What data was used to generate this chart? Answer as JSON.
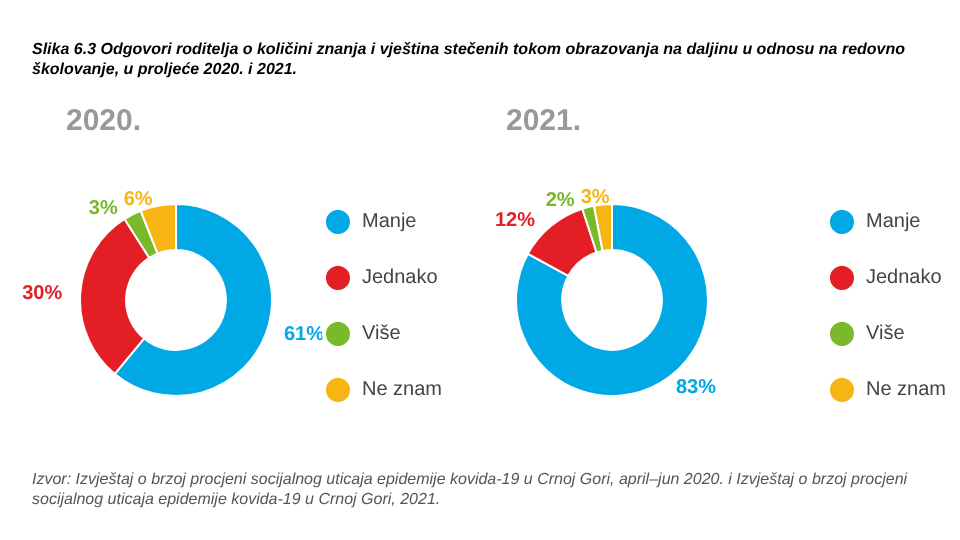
{
  "chart_data": [
    {
      "type": "donut",
      "title": "2020.",
      "annotations": [
        "Slika 6.3 Odgovori roditelja o količini znanja i vještina stečenih tokom obrazovanja na daljinu u odnosu na redovno školovanje, u proljeće 2020. i 2021."
      ],
      "categories": [
        "Manje",
        "Jednako",
        "Više",
        "Ne znam"
      ],
      "values": [
        61,
        30,
        3,
        6
      ],
      "value_labels": [
        "61%",
        "30%",
        "3%",
        "6%"
      ],
      "colors": [
        "#00a9e6",
        "#e31e24",
        "#7ab929",
        "#f7b514"
      ],
      "legend": "right"
    },
    {
      "type": "donut",
      "title": "2021.",
      "annotations": [
        "Izvor: Izvještaj o brzoj procjeni socijalnog uticaja epidemije kovida-19 u Crnoj Gori, april–jun 2020. i Izvještaj o brzoj procjeni socijalnog uticaja epidemije kovida-19 u Crnoj Gori, 2021."
      ],
      "categories": [
        "Manje",
        "Jednako",
        "Više",
        "Ne znam"
      ],
      "values": [
        83,
        12,
        2,
        3
      ],
      "value_labels": [
        "83%",
        "12%",
        "2%",
        "3%"
      ],
      "colors": [
        "#00a9e6",
        "#e31e24",
        "#7ab929",
        "#f7b514"
      ],
      "legend": "right"
    }
  ]
}
